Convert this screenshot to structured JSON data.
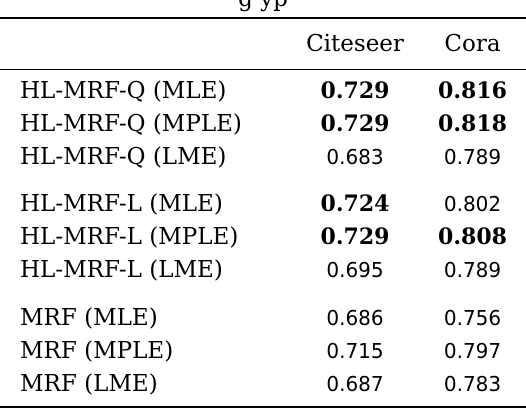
{
  "caption_fragment": "g             yp",
  "columns": {
    "dataset_1": "Citeseer",
    "dataset_2": "Cora"
  },
  "rows": [
    {
      "label": "HL-MRF-Q (MLE)",
      "citeseer": "0.729",
      "citeseer_bold": true,
      "cora": "0.816",
      "cora_bold": true
    },
    {
      "label": "HL-MRF-Q (MPLE)",
      "citeseer": "0.729",
      "citeseer_bold": true,
      "cora": "0.818",
      "cora_bold": true
    },
    {
      "label": "HL-MRF-Q (LME)",
      "citeseer": "0.683",
      "citeseer_bold": false,
      "cora": "0.789",
      "cora_bold": false
    },
    {
      "label": "HL-MRF-L (MLE)",
      "citeseer": "0.724",
      "citeseer_bold": true,
      "cora": "0.802",
      "cora_bold": false
    },
    {
      "label": "HL-MRF-L (MPLE)",
      "citeseer": "0.729",
      "citeseer_bold": true,
      "cora": "0.808",
      "cora_bold": true
    },
    {
      "label": "HL-MRF-L (LME)",
      "citeseer": "0.695",
      "citeseer_bold": false,
      "cora": "0.789",
      "cora_bold": false
    },
    {
      "label": "MRF (MLE)",
      "citeseer": "0.686",
      "citeseer_bold": false,
      "cora": "0.756",
      "cora_bold": false
    },
    {
      "label": "MRF (MPLE)",
      "citeseer": "0.715",
      "citeseer_bold": false,
      "cora": "0.797",
      "cora_bold": false
    },
    {
      "label": "MRF (LME)",
      "citeseer": "0.687",
      "citeseer_bold": false,
      "cora": "0.783",
      "cora_bold": false
    }
  ]
}
